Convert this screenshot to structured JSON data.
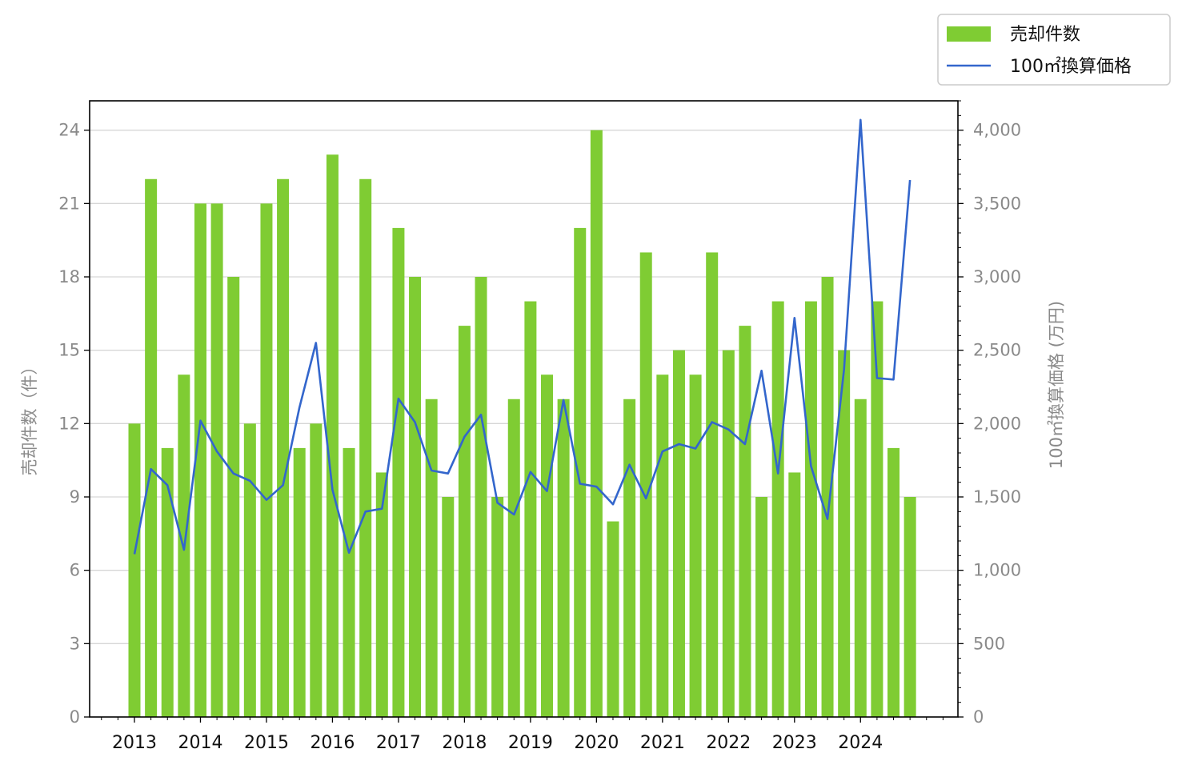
{
  "chart_data": {
    "type": "bar",
    "x_tick_labels": [
      "2013",
      "2014",
      "2015",
      "2016",
      "2017",
      "2018",
      "2019",
      "2020",
      "2021",
      "2022",
      "2023",
      "2024"
    ],
    "y_left": {
      "label": "売却件数（件）",
      "ticks": [
        "0",
        "3",
        "6",
        "9",
        "12",
        "15",
        "18",
        "21",
        "24"
      ],
      "lim": [
        0,
        25.2
      ]
    },
    "y_right": {
      "label": "100㎡換算価格 (万円)",
      "ticks": [
        "0",
        "500",
        "1,000",
        "1,500",
        "2,000",
        "2,500",
        "3,000",
        "3,500",
        "4,000"
      ],
      "lim": [
        0,
        4200
      ]
    },
    "grid": "horizontal (left axis)",
    "legend_position": "top-right",
    "series": [
      {
        "name": "売却件数",
        "type": "bar",
        "axis": "left",
        "color": "#7fcc33",
        "values": [
          12,
          22,
          11,
          14,
          21,
          21,
          18,
          12,
          21,
          22,
          11,
          12,
          23,
          11,
          22,
          10,
          20,
          18,
          13,
          9,
          16,
          18,
          9,
          13,
          17,
          14,
          13,
          20,
          24,
          8,
          13,
          19,
          14,
          15,
          14,
          19,
          15,
          16,
          9,
          17,
          10,
          17,
          18,
          15,
          13,
          17,
          11,
          9
        ]
      },
      {
        "name": "100㎡換算価格",
        "type": "line",
        "axis": "right",
        "color": "#3366cc",
        "values": [
          1110,
          1690,
          1580,
          1140,
          2020,
          1810,
          1660,
          1610,
          1480,
          1580,
          2110,
          2550,
          1550,
          1120,
          1400,
          1420,
          2170,
          2010,
          1680,
          1660,
          1910,
          2060,
          1460,
          1380,
          1670,
          1540,
          2160,
          1590,
          1570,
          1450,
          1720,
          1490,
          1810,
          1860,
          1830,
          2010,
          1960,
          1860,
          2360,
          1660,
          2720,
          1710,
          1350,
          2370,
          4070,
          2310,
          2300,
          3660
        ]
      }
    ]
  }
}
